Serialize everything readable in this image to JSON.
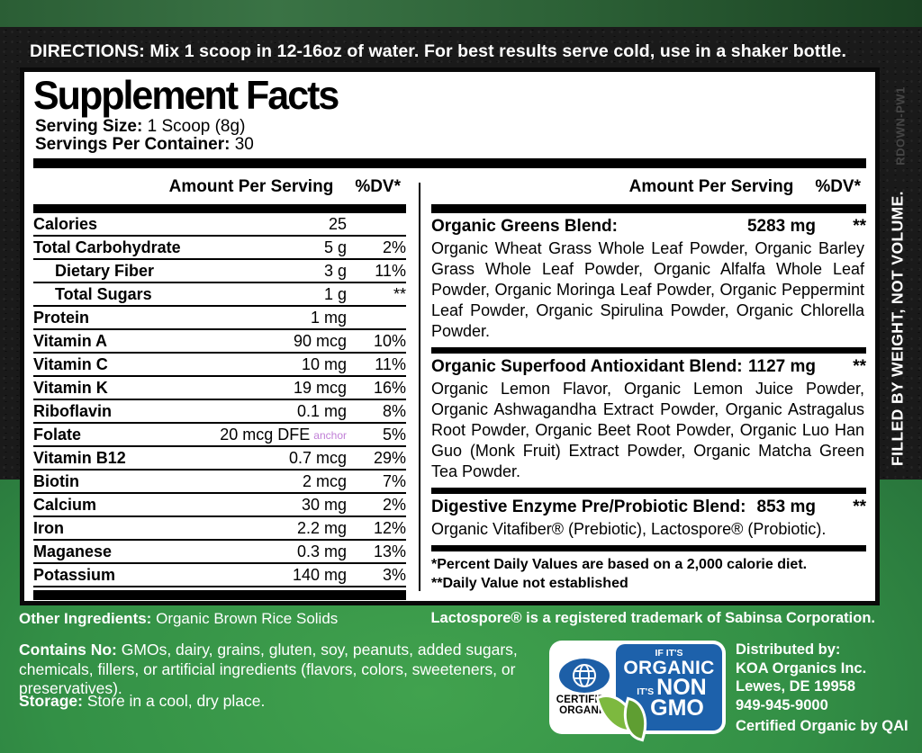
{
  "directions": {
    "label": "DIRECTIONS:",
    "text": "Mix 1 scoop in 12-16oz of water.  For best results serve cold, use in a shaker bottle."
  },
  "panel": {
    "title": "Supplement Facts",
    "serving_size_label": "Serving Size:",
    "serving_size_value": "1 Scoop (8g)",
    "servings_label": "Servings Per Container:",
    "servings_value": "30",
    "col_header_amount": "Amount Per Serving",
    "col_header_dv": "%DV*",
    "nutrients": [
      {
        "name": "Calories",
        "amount": "25",
        "dv": "",
        "indent": false
      },
      {
        "name": "Total Carbohydrate",
        "amount": "5 g",
        "dv": "2%",
        "indent": false
      },
      {
        "name": "Dietary Fiber",
        "amount": "3 g",
        "dv": "11%",
        "indent": true
      },
      {
        "name": "Total Sugars",
        "amount": "1 g",
        "dv": "**",
        "indent": true
      },
      {
        "name": "Protein",
        "amount": "1 mg",
        "dv": "",
        "indent": false
      },
      {
        "name": "Vitamin A",
        "amount": "90 mcg",
        "dv": "10%",
        "indent": false
      },
      {
        "name": "Vitamin C",
        "amount": "10 mg",
        "dv": "11%",
        "indent": false
      },
      {
        "name": "Vitamin K",
        "amount": "19 mcg",
        "dv": "16%",
        "indent": false
      },
      {
        "name": "Riboflavin",
        "amount": "0.1 mg",
        "dv": "8%",
        "indent": false
      },
      {
        "name": "Folate",
        "amount": "20 mcg DFE",
        "dv": "5%",
        "indent": false,
        "annotation": "anchor"
      },
      {
        "name": "Vitamin B12",
        "amount": "0.7 mcg",
        "dv": "29%",
        "indent": false
      },
      {
        "name": "Biotin",
        "amount": "2 mcg",
        "dv": "7%",
        "indent": false
      },
      {
        "name": "Calcium",
        "amount": "30 mg",
        "dv": "2%",
        "indent": false
      },
      {
        "name": "Iron",
        "amount": "2.2 mg",
        "dv": "12%",
        "indent": false
      },
      {
        "name": "Maganese",
        "amount": "0.3 mg",
        "dv": "13%",
        "indent": false
      },
      {
        "name": "Potassium",
        "amount": "140 mg",
        "dv": "3%",
        "indent": false
      }
    ],
    "blends": [
      {
        "name": "Organic Greens Blend:",
        "amount": "5283 mg",
        "dv": "**",
        "ingredients": "Organic Wheat Grass Whole Leaf Powder, Organic Barley Grass Whole Leaf Powder, Organic Alfalfa Whole Leaf Powder, Organic Moringa Leaf Powder, Organic Peppermint Leaf Powder, Organic Spirulina Powder, Organic Chlorella Powder."
      },
      {
        "name": "Organic Superfood Antioxidant Blend:",
        "amount": "1127 mg",
        "dv": "**",
        "ingredients": "Organic Lemon Flavor, Organic Lemon Juice Powder, Organic Ashwagandha Extract Powder, Organic Astragalus Root Powder, Organic Beet Root Powder, Organic Luo Han Guo (Monk Fruit) Extract Powder, Organic Matcha Green Tea Powder."
      },
      {
        "name": "Digestive Enzyme Pre/Probiotic Blend:",
        "amount": "853 mg",
        "dv": "**",
        "ingredients": "Organic Vitafiber® (Prebiotic), Lactospore® (Probiotic)."
      }
    ],
    "footnotes": [
      "*Percent Daily Values are based on a 2,000 calorie diet.",
      "**Daily Value not established"
    ]
  },
  "bottom": {
    "other_ingredients_label": "Other Ingredients:",
    "other_ingredients_value": "Organic Brown Rice Solids",
    "trademark": "Lactospore® is a registered trademark of Sabinsa Corporation.",
    "contains_no_label": "Contains No:",
    "contains_no_text": "GMOs, dairy, grains, gluten, soy, peanuts, added sugars, chemicals, fillers, or artificial ingredients (flavors, colors, sweeteners, or preservatives).",
    "storage_label": "Storage:",
    "storage_text": "Store in a cool, dry place.",
    "badge": {
      "certified_line1": "CERTIFIED",
      "certified_line2": "ORGANIC",
      "if_its": "IF IT'S",
      "organic": "ORGANIC",
      "its": "IT'S",
      "non": "NON",
      "gmo": "GMO"
    },
    "distributor": {
      "label": "Distributed by:",
      "lines": [
        "KOA Organics Inc.",
        "Lewes, DE 19958",
        "949-945-9000"
      ],
      "certified": "Certified Organic by QAI"
    }
  },
  "side": {
    "vertical_text": "FILLED BY WEIGHT, NOT VOLUME.",
    "code": "RDOWN-PW1"
  },
  "colors": {
    "green_bright": "#41a24e",
    "green_dark": "#1b4d27",
    "band_black": "#1a1a1a",
    "badge_blue": "#1d61ab",
    "leaf_green": "#7db93f",
    "anchor_pink": "#c07fd6"
  }
}
